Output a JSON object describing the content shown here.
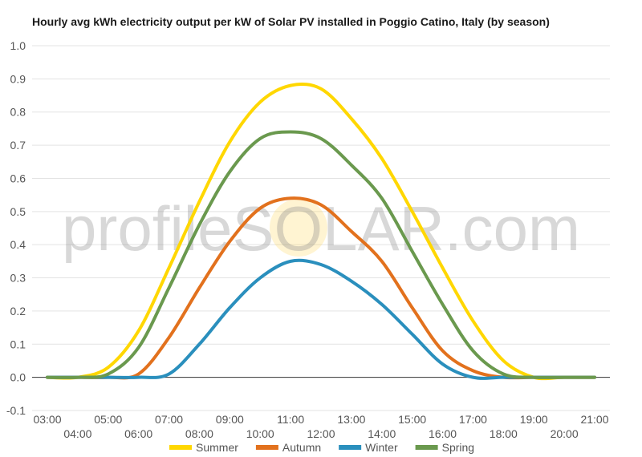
{
  "title": "Hourly avg kWh electricity output per kW of Solar PV installed in Poggio Catino, Italy (by season)",
  "watermark": "profileSOLAR.com",
  "chart_data": {
    "type": "line",
    "title": "Hourly avg kWh electricity output per kW of Solar PV installed in Poggio Catino, Italy (by season)",
    "xlabel": "",
    "ylabel": "",
    "ylim": [
      -0.1,
      1.0
    ],
    "yticks": [
      "-0.1",
      "0.0",
      "0.1",
      "0.2",
      "0.3",
      "0.4",
      "0.5",
      "0.6",
      "0.7",
      "0.8",
      "0.9",
      "1.0"
    ],
    "x": [
      "03:00",
      "04:00",
      "05:00",
      "06:00",
      "07:00",
      "08:00",
      "09:00",
      "10:00",
      "11:00",
      "12:00",
      "13:00",
      "14:00",
      "15:00",
      "16:00",
      "17:00",
      "18:00",
      "19:00",
      "20:00",
      "21:00"
    ],
    "grid": true,
    "legend": "bottom",
    "series": [
      {
        "name": "Summer",
        "color": "#ffd700",
        "values": [
          0.0,
          0.0,
          0.03,
          0.14,
          0.33,
          0.53,
          0.71,
          0.83,
          0.88,
          0.87,
          0.78,
          0.66,
          0.5,
          0.33,
          0.17,
          0.05,
          0.0,
          0.0,
          0.0
        ]
      },
      {
        "name": "Autumn",
        "color": "#e2711d",
        "values": [
          0.0,
          0.0,
          0.0,
          0.01,
          0.12,
          0.27,
          0.41,
          0.51,
          0.54,
          0.52,
          0.44,
          0.35,
          0.21,
          0.08,
          0.02,
          0.0,
          0.0,
          0.0,
          0.0
        ]
      },
      {
        "name": "Winter",
        "color": "#2a8fbd",
        "values": [
          0.0,
          0.0,
          0.0,
          0.0,
          0.01,
          0.1,
          0.21,
          0.3,
          0.35,
          0.34,
          0.29,
          0.22,
          0.13,
          0.04,
          0.0,
          0.0,
          0.0,
          0.0,
          0.0
        ]
      },
      {
        "name": "Spring",
        "color": "#6a994e",
        "values": [
          0.0,
          0.0,
          0.01,
          0.09,
          0.27,
          0.46,
          0.62,
          0.72,
          0.74,
          0.72,
          0.64,
          0.54,
          0.38,
          0.22,
          0.08,
          0.01,
          0.0,
          0.0,
          0.0
        ]
      }
    ]
  }
}
